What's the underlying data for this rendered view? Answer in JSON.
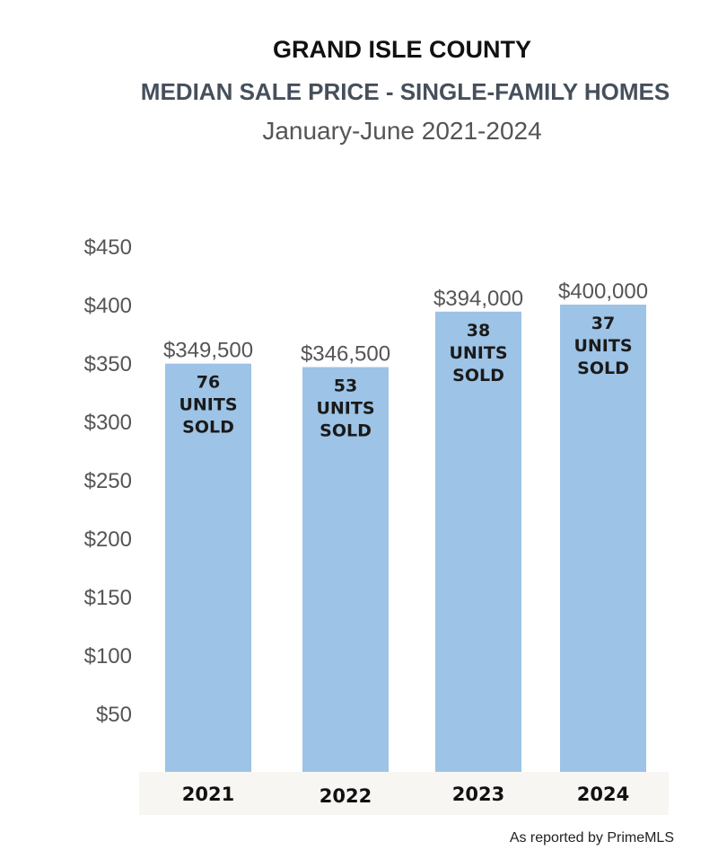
{
  "title": "GRAND ISLE COUNTY",
  "subtitle": "MEDIAN SALE PRICE - SINGLE-FAMILY HOMES",
  "period": "January-June 2021-2024",
  "source": "As reported by PrimeMLS",
  "chart_data": {
    "type": "bar",
    "categories": [
      "2021",
      "2022",
      "2023",
      "2024"
    ],
    "values": [
      349500,
      346500,
      394000,
      400000
    ],
    "value_labels": [
      "$349,500",
      "$346,500",
      "$394,000",
      "$400,000"
    ],
    "units_sold": [
      [
        "76",
        "UNITS",
        "SOLD"
      ],
      [
        "53",
        "UNITS",
        "SOLD"
      ],
      [
        "38",
        "UNITS",
        "SOLD"
      ],
      [
        "37",
        "UNITS",
        "SOLD"
      ]
    ],
    "y_ticks": [
      50,
      100,
      150,
      200,
      250,
      300,
      350,
      400,
      450
    ],
    "y_tick_labels": [
      "$50",
      "$100",
      "$150",
      "$200",
      "$250",
      "$300",
      "$350",
      "$400",
      "$450"
    ],
    "ylim": [
      0,
      450000
    ],
    "grid": false,
    "bar_color": "#9dc3e6",
    "category_band_color": "#f7f6f3"
  }
}
